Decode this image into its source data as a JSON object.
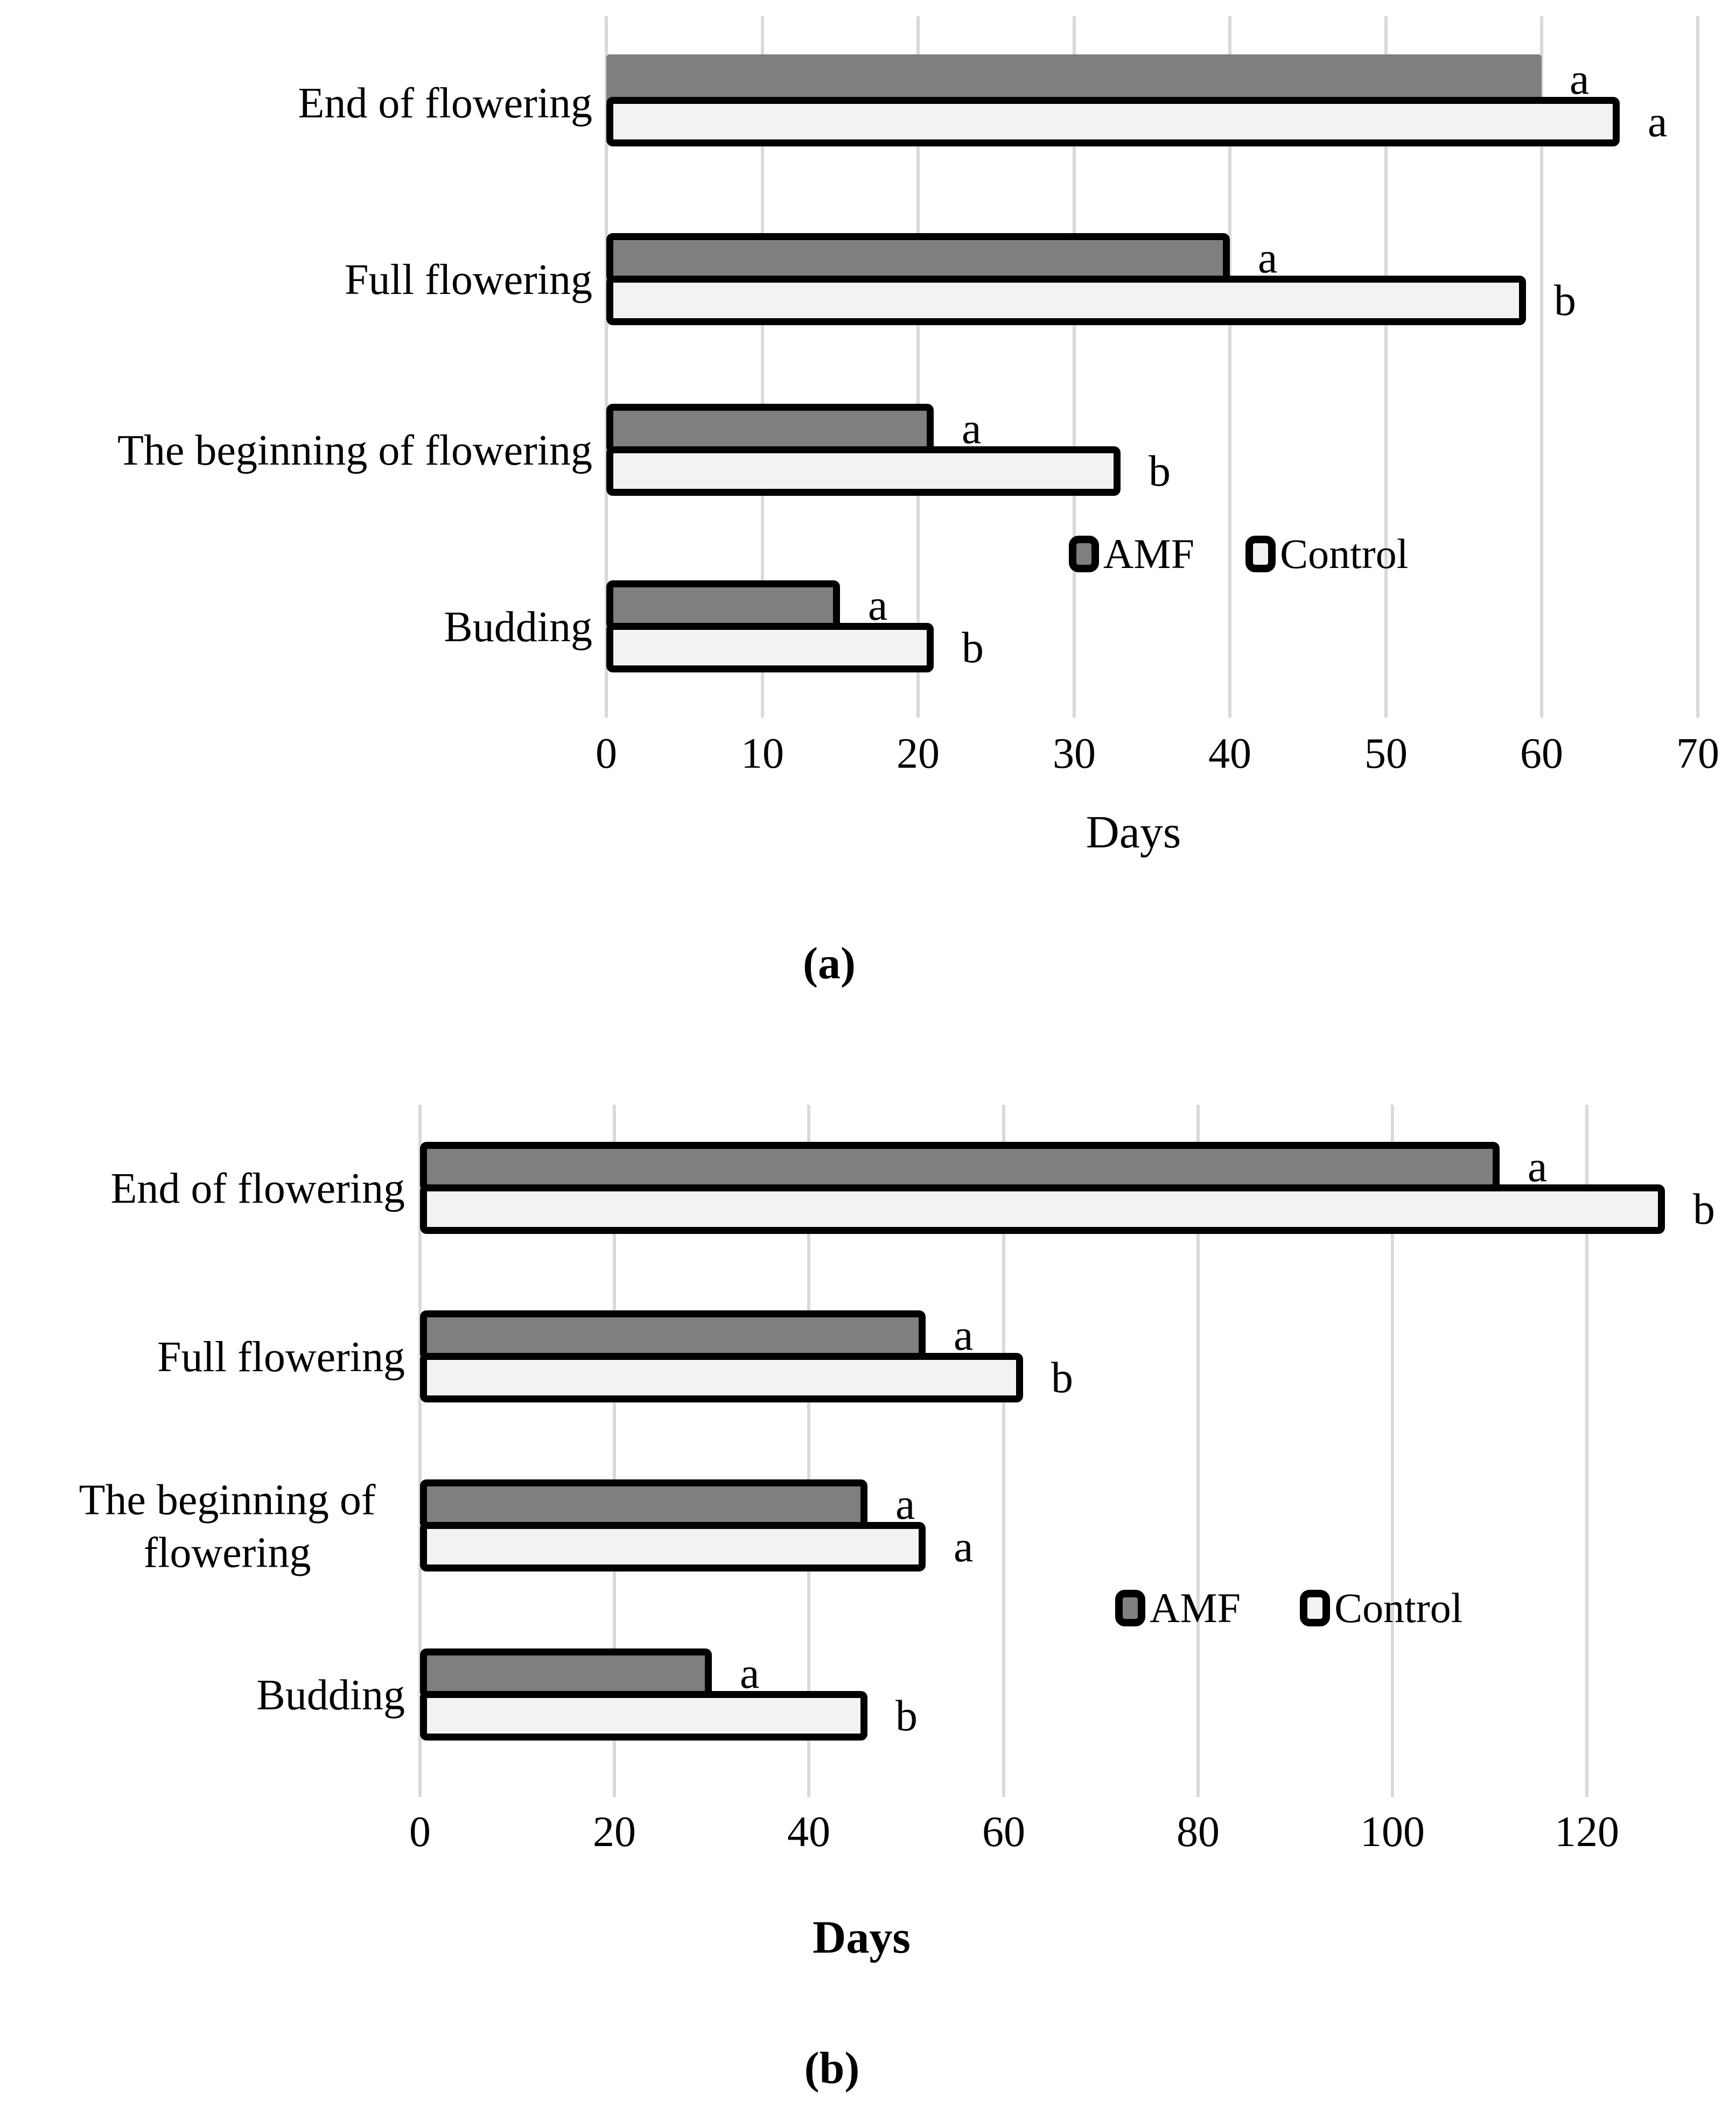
{
  "figure": {
    "background": "#ffffff"
  },
  "colors": {
    "amf_fill": "#7f7f7f",
    "control_fill": "#f2f2f2",
    "bar_border": "#000000",
    "gridline": "#d9d9d9",
    "text": "#000000"
  },
  "chart_data": [
    {
      "id": "a",
      "type": "bar",
      "orientation": "horizontal",
      "grid": true,
      "title": "",
      "xlabel": "Days",
      "ylabel": "",
      "xlim": [
        0,
        70
      ],
      "xticks": [
        0,
        10,
        20,
        30,
        40,
        50,
        60,
        70
      ],
      "categories": [
        "End of flowering",
        "Full flowering",
        "The beginning of flowering",
        "Budding"
      ],
      "categories_order": "top-to-bottom",
      "series": [
        {
          "name": "AMF",
          "color": "#7f7f7f",
          "values": [
            60,
            40,
            21,
            15
          ],
          "sig_letters": [
            "a",
            "a",
            "a",
            "a"
          ]
        },
        {
          "name": "Control",
          "color": "#f2f2f2",
          "values": [
            65,
            59,
            33,
            21
          ],
          "sig_letters": [
            "a",
            "b",
            "b",
            "b"
          ]
        }
      ],
      "legend_items": [
        "AMF",
        "Control"
      ],
      "legend_position": "inside-right",
      "caption": "(a)"
    },
    {
      "id": "b",
      "type": "bar",
      "orientation": "horizontal",
      "grid": true,
      "title": "",
      "xlabel": "Days",
      "ylabel": "",
      "xlim": [
        0,
        130
      ],
      "xticks": [
        0,
        20,
        40,
        60,
        80,
        100,
        120
      ],
      "categories": [
        "End of flowering",
        "Full flowering",
        "The beginning of flowering",
        "Budding"
      ],
      "categories_display": [
        [
          "End of flowering"
        ],
        [
          "Full flowering"
        ],
        [
          "The beginning of",
          "flowering"
        ],
        [
          "Budding"
        ]
      ],
      "categories_order": "top-to-bottom",
      "series": [
        {
          "name": "AMF",
          "color": "#7f7f7f",
          "values": [
            111,
            52,
            46,
            30
          ],
          "sig_letters": [
            "a",
            "a",
            "a",
            "a"
          ]
        },
        {
          "name": "Control",
          "color": "#f2f2f2",
          "values": [
            128,
            62,
            52,
            46
          ],
          "sig_letters": [
            "b",
            "b",
            "a",
            "b"
          ]
        }
      ],
      "legend_items": [
        "AMF",
        "Control"
      ],
      "legend_position": "inside-right",
      "caption": "(b)"
    }
  ]
}
